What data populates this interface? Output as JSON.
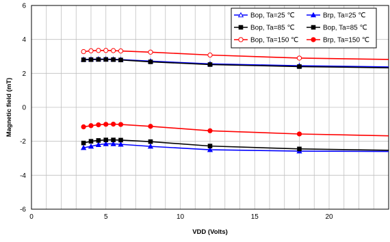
{
  "chart_data": {
    "type": "line",
    "title": "",
    "xlabel": "VDD (Volts)",
    "ylabel": "Magnetic field (mT)",
    "xlim": [
      0,
      24
    ],
    "ylim": [
      -6,
      6
    ],
    "xticks": [
      0,
      5,
      10,
      15,
      20
    ],
    "yticks": [
      -6,
      -4,
      -2,
      0,
      2,
      4,
      6
    ],
    "grid": true,
    "legend_position": "top-right",
    "series": [
      {
        "name": "Bop, Ta=25 ℃",
        "color": "#0000ff",
        "marker": "triangle-open",
        "x": [
          3.5,
          4,
          4.5,
          5,
          5.5,
          6,
          8,
          12,
          18,
          24
        ],
        "y": [
          2.82,
          2.83,
          2.84,
          2.84,
          2.83,
          2.81,
          2.72,
          2.56,
          2.45,
          2.38
        ]
      },
      {
        "name": "Brp, Ta=25 ℃",
        "color": "#0000ff",
        "marker": "triangle-filled",
        "x": [
          3.5,
          4,
          4.5,
          5,
          5.5,
          6,
          8,
          12,
          18,
          24
        ],
        "y": [
          -2.38,
          -2.3,
          -2.2,
          -2.15,
          -2.15,
          -2.18,
          -2.3,
          -2.5,
          -2.58,
          -2.6
        ]
      },
      {
        "name": "Bop, Ta=85 ℃",
        "color": "#000000",
        "marker": "square-filled",
        "x": [
          3.5,
          4,
          4.5,
          5,
          5.5,
          6,
          8,
          12,
          18,
          24
        ],
        "y": [
          2.8,
          2.81,
          2.82,
          2.82,
          2.81,
          2.79,
          2.68,
          2.52,
          2.4,
          2.33
        ]
      },
      {
        "name": "Bop, Ta=85 ℃",
        "color": "#000000",
        "marker": "square-filled",
        "x": [
          3.5,
          4,
          4.5,
          5,
          5.5,
          6,
          8,
          12,
          18,
          24
        ],
        "y": [
          -2.1,
          -2.0,
          -1.95,
          -1.92,
          -1.92,
          -1.93,
          -2.02,
          -2.28,
          -2.45,
          -2.53
        ]
      },
      {
        "name": "Bop, Ta=150 ℃",
        "color": "#ff0000",
        "marker": "circle-open",
        "x": [
          3.5,
          4,
          4.5,
          5,
          5.5,
          6,
          8,
          12,
          18,
          24
        ],
        "y": [
          3.28,
          3.33,
          3.35,
          3.35,
          3.34,
          3.32,
          3.25,
          3.08,
          2.9,
          2.82
        ]
      },
      {
        "name": "Brp, Ta=150 ℃",
        "color": "#ff0000",
        "marker": "circle-filled",
        "x": [
          3.5,
          4,
          4.5,
          5,
          5.5,
          6,
          8,
          12,
          18,
          24
        ],
        "y": [
          -1.15,
          -1.08,
          -1.03,
          -1.0,
          -0.99,
          -1.01,
          -1.12,
          -1.38,
          -1.57,
          -1.68
        ]
      }
    ]
  }
}
